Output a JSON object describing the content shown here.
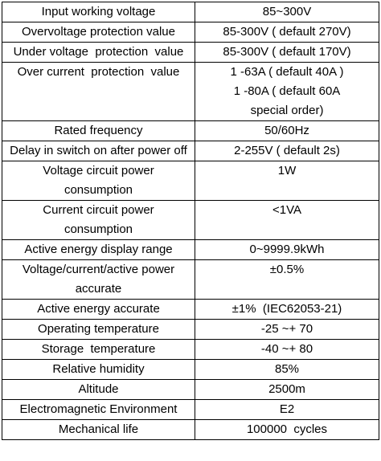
{
  "table": {
    "rows": [
      [
        "Input working voltage",
        "85~300V"
      ],
      [
        "Overvoltage protection value",
        "85-300V ( default 270V)"
      ],
      [
        "Under voltage  protection  value",
        "85-300V ( default 170V)"
      ],
      [
        "Over current  protection  value",
        [
          "1 -63A ( default 40A )",
          "1 -80A ( default 60A",
          "special order)"
        ]
      ],
      [
        "Rated frequency",
        "50/60Hz"
      ],
      [
        "Delay in switch on after power off",
        "2-255V ( default 2s)"
      ],
      [
        "Voltage circuit power consumption",
        "1W"
      ],
      [
        "Current circuit power consumption",
        "<1VA"
      ],
      [
        "Active energy display range",
        "0~9999.9kWh"
      ],
      [
        "Voltage/current/active power accurate",
        "±0.5%"
      ],
      [
        "Active energy accurate",
        "±1%  (IEC62053-21)"
      ],
      [
        "Operating temperature",
        "-25 ~+ 70"
      ],
      [
        "Storage  temperature",
        "-40 ~+ 80"
      ],
      [
        "Relative humidity",
        "85%"
      ],
      [
        "Altitude",
        "2500m"
      ],
      [
        "Electromagnetic Environment",
        "E2"
      ],
      [
        "Mechanical life",
        "100000  cycles"
      ]
    ]
  }
}
